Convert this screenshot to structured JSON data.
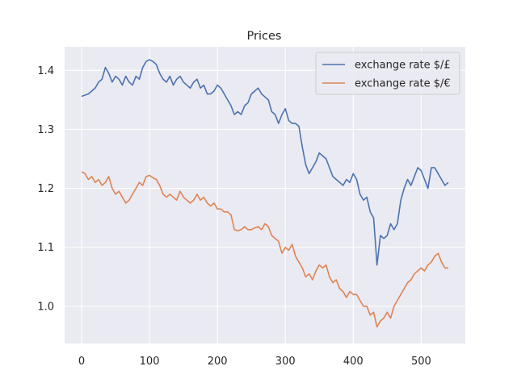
{
  "chart_data": {
    "type": "line",
    "title": "Prices",
    "xlabel": "",
    "ylabel": "",
    "xlim": [
      -25,
      565
    ],
    "ylim": [
      0.937,
      1.44
    ],
    "xticks": [
      0,
      100,
      200,
      300,
      400,
      500
    ],
    "yticks": [
      1.0,
      1.1,
      1.2,
      1.3,
      1.4
    ],
    "grid": true,
    "legend_position": "top-right",
    "series": [
      {
        "name": "exchange rate $/£",
        "color": "#4c72b0",
        "x": [
          0,
          5,
          10,
          15,
          20,
          25,
          30,
          35,
          40,
          45,
          50,
          55,
          60,
          65,
          70,
          75,
          80,
          85,
          90,
          95,
          100,
          105,
          110,
          115,
          120,
          125,
          130,
          135,
          140,
          145,
          150,
          155,
          160,
          165,
          170,
          175,
          180,
          185,
          190,
          195,
          200,
          205,
          210,
          215,
          220,
          225,
          230,
          235,
          240,
          245,
          250,
          255,
          260,
          265,
          270,
          275,
          280,
          285,
          290,
          295,
          300,
          305,
          310,
          315,
          320,
          325,
          330,
          335,
          340,
          345,
          350,
          355,
          360,
          365,
          370,
          375,
          380,
          385,
          390,
          395,
          400,
          405,
          410,
          415,
          420,
          425,
          430,
          435,
          440,
          445,
          450,
          455,
          460,
          465,
          470,
          475,
          480,
          485,
          490,
          495,
          500,
          505,
          510,
          515,
          520,
          525,
          530,
          535,
          540
        ],
        "values": [
          1.356,
          1.358,
          1.36,
          1.365,
          1.37,
          1.38,
          1.385,
          1.405,
          1.395,
          1.38,
          1.39,
          1.385,
          1.375,
          1.39,
          1.38,
          1.375,
          1.39,
          1.385,
          1.405,
          1.415,
          1.418,
          1.415,
          1.41,
          1.395,
          1.385,
          1.38,
          1.39,
          1.375,
          1.385,
          1.39,
          1.38,
          1.375,
          1.37,
          1.38,
          1.385,
          1.37,
          1.375,
          1.36,
          1.36,
          1.365,
          1.375,
          1.37,
          1.36,
          1.35,
          1.34,
          1.325,
          1.33,
          1.325,
          1.34,
          1.345,
          1.36,
          1.365,
          1.37,
          1.36,
          1.355,
          1.35,
          1.33,
          1.325,
          1.31,
          1.325,
          1.335,
          1.315,
          1.31,
          1.31,
          1.305,
          1.27,
          1.24,
          1.225,
          1.235,
          1.245,
          1.26,
          1.255,
          1.25,
          1.235,
          1.22,
          1.215,
          1.21,
          1.205,
          1.215,
          1.21,
          1.225,
          1.215,
          1.19,
          1.18,
          1.185,
          1.16,
          1.15,
          1.07,
          1.12,
          1.115,
          1.12,
          1.14,
          1.13,
          1.14,
          1.18,
          1.2,
          1.215,
          1.205,
          1.22,
          1.235,
          1.23,
          1.215,
          1.2,
          1.235,
          1.235,
          1.225,
          1.215,
          1.205,
          1.21
        ]
      },
      {
        "name": "exchange rate $/€",
        "color": "#dd8452",
        "x": [
          0,
          5,
          10,
          15,
          20,
          25,
          30,
          35,
          40,
          45,
          50,
          55,
          60,
          65,
          70,
          75,
          80,
          85,
          90,
          95,
          100,
          105,
          110,
          115,
          120,
          125,
          130,
          135,
          140,
          145,
          150,
          155,
          160,
          165,
          170,
          175,
          180,
          185,
          190,
          195,
          200,
          205,
          210,
          215,
          220,
          225,
          230,
          235,
          240,
          245,
          250,
          255,
          260,
          265,
          270,
          275,
          280,
          285,
          290,
          295,
          300,
          305,
          310,
          315,
          320,
          325,
          330,
          335,
          340,
          345,
          350,
          355,
          360,
          365,
          370,
          375,
          380,
          385,
          390,
          395,
          400,
          405,
          410,
          415,
          420,
          425,
          430,
          435,
          440,
          445,
          450,
          455,
          460,
          465,
          470,
          475,
          480,
          485,
          490,
          495,
          500,
          505,
          510,
          515,
          520,
          525,
          530,
          535,
          540
        ],
        "values": [
          1.228,
          1.225,
          1.215,
          1.22,
          1.21,
          1.215,
          1.205,
          1.21,
          1.22,
          1.2,
          1.19,
          1.195,
          1.185,
          1.175,
          1.18,
          1.19,
          1.2,
          1.21,
          1.205,
          1.22,
          1.222,
          1.218,
          1.215,
          1.205,
          1.19,
          1.185,
          1.19,
          1.185,
          1.18,
          1.195,
          1.185,
          1.18,
          1.175,
          1.18,
          1.19,
          1.18,
          1.185,
          1.175,
          1.17,
          1.175,
          1.165,
          1.165,
          1.16,
          1.16,
          1.155,
          1.13,
          1.128,
          1.13,
          1.135,
          1.13,
          1.13,
          1.133,
          1.135,
          1.13,
          1.14,
          1.135,
          1.12,
          1.115,
          1.11,
          1.09,
          1.1,
          1.095,
          1.105,
          1.085,
          1.075,
          1.065,
          1.05,
          1.055,
          1.045,
          1.06,
          1.07,
          1.065,
          1.07,
          1.05,
          1.04,
          1.045,
          1.03,
          1.025,
          1.015,
          1.025,
          1.02,
          1.02,
          1.01,
          1.0,
          1.0,
          0.985,
          0.99,
          0.965,
          0.975,
          0.98,
          0.99,
          0.98,
          1.0,
          1.01,
          1.02,
          1.03,
          1.04,
          1.045,
          1.055,
          1.06,
          1.065,
          1.06,
          1.07,
          1.075,
          1.085,
          1.09,
          1.075,
          1.065,
          1.065
        ]
      }
    ]
  },
  "colors": {
    "axes_background": "#eaeaf2",
    "grid": "#ffffff",
    "text": "#262626"
  }
}
